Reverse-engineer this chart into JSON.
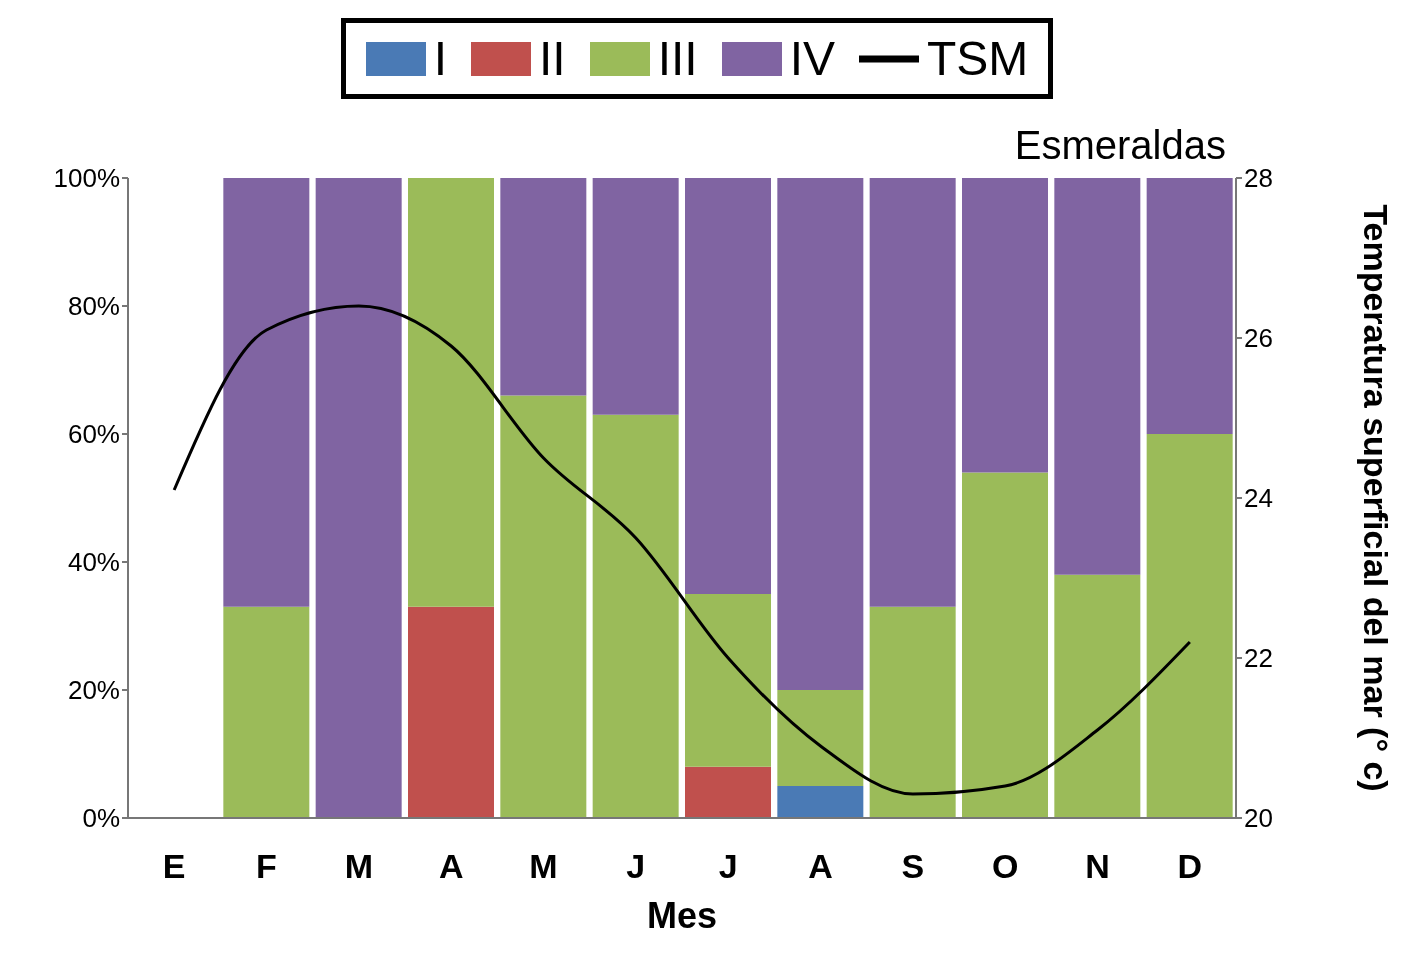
{
  "chart_data": {
    "type": "bar",
    "stacked": true,
    "xlabel": "Mes",
    "y2label": "Temperatura superficial del mar (° c)",
    "annotations": [
      "Esmeraldas"
    ],
    "categories": [
      "E",
      "F",
      "M",
      "A",
      "M",
      "J",
      "J",
      "A",
      "S",
      "O",
      "N",
      "D"
    ],
    "series": [
      {
        "name": "I",
        "color": "#4a7ab5",
        "values": [
          null,
          0,
          0,
          0,
          0,
          0,
          0,
          5,
          0,
          0,
          0,
          0
        ]
      },
      {
        "name": "II",
        "color": "#c0504d",
        "values": [
          null,
          0,
          0,
          33,
          0,
          0,
          8,
          0,
          0,
          0,
          0,
          0
        ]
      },
      {
        "name": "III",
        "color": "#9bbb59",
        "values": [
          null,
          33,
          0,
          67,
          66,
          63,
          27,
          15,
          33,
          54,
          38,
          60
        ]
      },
      {
        "name": "IV",
        "color": "#8064a2",
        "values": [
          null,
          67,
          100,
          0,
          34,
          37,
          65,
          80,
          67,
          46,
          62,
          40
        ]
      },
      {
        "name": "TSM",
        "type": "line",
        "axis": "y2",
        "color": "#000000",
        "values": [
          24.1,
          26.1,
          26.4,
          25.9,
          24.5,
          23.5,
          22.0,
          20.9,
          20.3,
          20.4,
          21.1,
          22.2
        ]
      }
    ],
    "ylim": [
      0,
      100
    ],
    "yticks": [
      {
        "value": 0,
        "label": "0%"
      },
      {
        "value": 20,
        "label": "20%"
      },
      {
        "value": 40,
        "label": "40%"
      },
      {
        "value": 60,
        "label": "60%"
      },
      {
        "value": 80,
        "label": "80%"
      },
      {
        "value": 100,
        "label": "100%"
      }
    ],
    "y2lim": [
      20,
      28
    ],
    "y2ticks": [
      20,
      22,
      24,
      26,
      28
    ],
    "legend": "top",
    "marker": "none"
  }
}
